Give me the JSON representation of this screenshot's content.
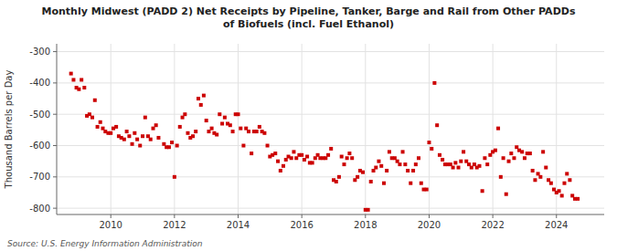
{
  "chart_data": {
    "type": "scatter",
    "title": "Monthly Midwest (PADD 2) Net Receipts by Pipeline, Tanker, Barge and Rail from Other PADDs\nof Biofuels (incl. Fuel Ethanol)",
    "ylabel": "Thousand Barrels per Day",
    "source": "Source: U.S. Energy Information Administration",
    "color": "#cc0000",
    "marker": "square",
    "grid": true,
    "ylim": [
      -820,
      -275
    ],
    "yticks": [
      -800,
      -700,
      -600,
      -500,
      -400,
      -300
    ],
    "xlim": [
      2008.3,
      2025.5
    ],
    "xticks": [
      2010,
      2012,
      2014,
      2016,
      2018,
      2020,
      2022,
      2024
    ],
    "x": [
      2008.75,
      2008.83,
      2008.92,
      2009.0,
      2009.08,
      2009.17,
      2009.25,
      2009.33,
      2009.42,
      2009.5,
      2009.58,
      2009.67,
      2009.75,
      2009.83,
      2009.92,
      2010.0,
      2010.08,
      2010.17,
      2010.25,
      2010.33,
      2010.42,
      2010.5,
      2010.58,
      2010.67,
      2010.75,
      2010.83,
      2010.92,
      2011.0,
      2011.08,
      2011.17,
      2011.25,
      2011.33,
      2011.42,
      2011.5,
      2011.67,
      2011.75,
      2011.83,
      2011.92,
      2012.0,
      2012.08,
      2012.17,
      2012.25,
      2012.33,
      2012.42,
      2012.5,
      2012.58,
      2012.67,
      2012.75,
      2012.83,
      2012.92,
      2013.0,
      2013.08,
      2013.17,
      2013.25,
      2013.33,
      2013.42,
      2013.5,
      2013.58,
      2013.67,
      2013.75,
      2013.83,
      2013.92,
      2014.0,
      2014.08,
      2014.17,
      2014.25,
      2014.33,
      2014.42,
      2014.5,
      2014.58,
      2014.67,
      2014.75,
      2014.83,
      2014.92,
      2015.0,
      2015.08,
      2015.17,
      2015.25,
      2015.33,
      2015.42,
      2015.5,
      2015.58,
      2015.67,
      2015.75,
      2015.83,
      2015.92,
      2016.0,
      2016.08,
      2016.17,
      2016.25,
      2016.33,
      2016.42,
      2016.5,
      2016.58,
      2016.67,
      2016.75,
      2016.83,
      2016.92,
      2017.0,
      2017.08,
      2017.17,
      2017.25,
      2017.33,
      2017.42,
      2017.5,
      2017.58,
      2017.67,
      2017.75,
      2017.83,
      2017.92,
      2018.0,
      2018.08,
      2018.17,
      2018.25,
      2018.33,
      2018.42,
      2018.5,
      2018.58,
      2018.67,
      2018.75,
      2018.83,
      2018.92,
      2019.0,
      2019.08,
      2019.17,
      2019.25,
      2019.33,
      2019.42,
      2019.5,
      2019.58,
      2019.67,
      2019.75,
      2019.83,
      2019.92,
      2020.0,
      2020.08,
      2020.17,
      2020.25,
      2020.33,
      2020.42,
      2020.5,
      2020.58,
      2020.67,
      2020.75,
      2020.83,
      2020.92,
      2021.0,
      2021.08,
      2021.17,
      2021.25,
      2021.33,
      2021.42,
      2021.5,
      2021.58,
      2021.67,
      2021.75,
      2021.83,
      2021.92,
      2022.0,
      2022.08,
      2022.17,
      2022.25,
      2022.33,
      2022.42,
      2022.5,
      2022.58,
      2022.67,
      2022.75,
      2022.83,
      2022.92,
      2023.0,
      2023.08,
      2023.17,
      2023.25,
      2023.33,
      2023.42,
      2023.5,
      2023.58,
      2023.67,
      2023.75,
      2023.83,
      2023.92,
      2024.0,
      2024.08,
      2024.17,
      2024.25,
      2024.33,
      2024.42,
      2024.5,
      2024.58,
      2024.67
    ],
    "values": [
      -370,
      -390,
      -415,
      -420,
      -390,
      -415,
      -505,
      -500,
      -510,
      -455,
      -540,
      -525,
      -545,
      -555,
      -560,
      -560,
      -545,
      -540,
      -570,
      -575,
      -580,
      -555,
      -570,
      -595,
      -560,
      -580,
      -600,
      -570,
      -510,
      -570,
      -580,
      -545,
      -535,
      -575,
      -595,
      -605,
      -605,
      -590,
      -700,
      -600,
      -540,
      -510,
      -500,
      -560,
      -575,
      -570,
      -555,
      -450,
      -470,
      -440,
      -520,
      -555,
      -545,
      -560,
      -565,
      -500,
      -530,
      -510,
      -530,
      -535,
      -555,
      -500,
      -500,
      -545,
      -600,
      -545,
      -555,
      -625,
      -555,
      -555,
      -540,
      -555,
      -560,
      -600,
      -635,
      -630,
      -625,
      -650,
      -680,
      -665,
      -645,
      -635,
      -640,
      -620,
      -640,
      -630,
      -630,
      -645,
      -635,
      -655,
      -655,
      -640,
      -630,
      -640,
      -640,
      -640,
      -630,
      -610,
      -710,
      -715,
      -700,
      -635,
      -660,
      -640,
      -625,
      -640,
      -710,
      -700,
      -680,
      -685,
      -805,
      -805,
      -715,
      -680,
      -670,
      -650,
      -665,
      -720,
      -680,
      -620,
      -640,
      -640,
      -650,
      -660,
      -620,
      -660,
      -680,
      -720,
      -680,
      -660,
      -640,
      -720,
      -740,
      -740,
      -590,
      -610,
      -400,
      -535,
      -630,
      -645,
      -660,
      -660,
      -660,
      -670,
      -655,
      -670,
      -650,
      -620,
      -650,
      -660,
      -670,
      -660,
      -670,
      -665,
      -745,
      -640,
      -660,
      -630,
      -620,
      -615,
      -545,
      -700,
      -640,
      -755,
      -650,
      -625,
      -640,
      -605,
      -615,
      -620,
      -640,
      -625,
      -625,
      -680,
      -710,
      -690,
      -700,
      -620,
      -670,
      -710,
      -720,
      -740,
      -750,
      -745,
      -760,
      -720,
      -690,
      -710,
      -760,
      -770,
      -770
    ]
  }
}
